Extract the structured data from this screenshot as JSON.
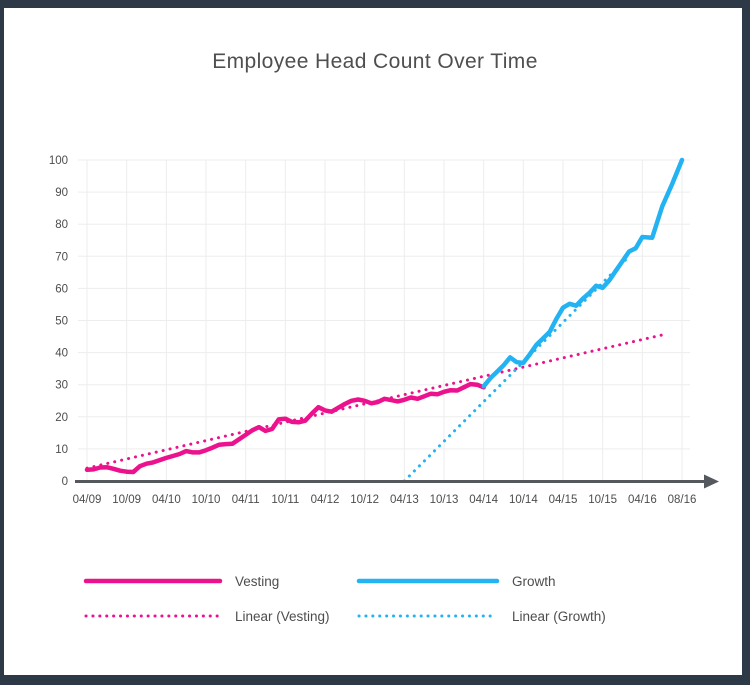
{
  "frame": {
    "border_color": "#2e3947",
    "page_bg": "#ffffff"
  },
  "legend": {
    "items": [
      {
        "label": "Vesting",
        "style": "solid",
        "color": "#ec118d"
      },
      {
        "label": "Growth",
        "style": "solid",
        "color": "#23b2f2"
      },
      {
        "label": "Linear (Vesting)",
        "style": "dotted",
        "color": "#ec118d"
      },
      {
        "label": "Linear (Growth)",
        "style": "dotted",
        "color": "#23b2f2"
      }
    ]
  },
  "chart_data": {
    "type": "line",
    "title": "Employee Head Count Over Time",
    "x_unit": "month index from 04/2009",
    "grid": true,
    "legend_position": "bottom",
    "ylim": [
      0,
      100
    ],
    "y_ticks": [
      0,
      10,
      20,
      30,
      40,
      50,
      60,
      70,
      80,
      90,
      100
    ],
    "x_ticks": [
      {
        "label": "04/09",
        "month": 0
      },
      {
        "label": "10/09",
        "month": 6
      },
      {
        "label": "04/10",
        "month": 12
      },
      {
        "label": "10/10",
        "month": 18
      },
      {
        "label": "04/11",
        "month": 24
      },
      {
        "label": "10/11",
        "month": 30
      },
      {
        "label": "04/12",
        "month": 36
      },
      {
        "label": "10/12",
        "month": 42
      },
      {
        "label": "04/13",
        "month": 48
      },
      {
        "label": "10/13",
        "month": 54
      },
      {
        "label": "04/14",
        "month": 60
      },
      {
        "label": "10/14",
        "month": 66
      },
      {
        "label": "04/15",
        "month": 72
      },
      {
        "label": "10/15",
        "month": 78
      },
      {
        "label": "04/16",
        "month": 84
      },
      {
        "label": "08/16",
        "month": 88
      }
    ],
    "colors": {
      "vesting": "#ec118d",
      "growth": "#23b2f2",
      "axis": "#55585c",
      "grid": "#ededed",
      "text": "#4d4d4d"
    },
    "series": [
      {
        "name": "Vesting",
        "color": "#ec118d",
        "line_style": "solid",
        "start_month": 0,
        "values": [
          3.5,
          3.6,
          4.2,
          4.3,
          3.8,
          3.2,
          2.9,
          2.8,
          4.6,
          5.4,
          5.8,
          6.5,
          7.2,
          7.8,
          8.4,
          9.3,
          8.9,
          8.9,
          9.6,
          10.4,
          11.3,
          11.5,
          11.6,
          13,
          14.4,
          15.8,
          16.8,
          15.6,
          16.2,
          19.2,
          19.4,
          18.4,
          18.3,
          18.8,
          21,
          23,
          22,
          21.6,
          22.8,
          24,
          25,
          25.4,
          25,
          24.2,
          24.6,
          25.6,
          25.2,
          24.8,
          25.3,
          26,
          25.6,
          26.4,
          27.2,
          27,
          27.8,
          28.3,
          28.2,
          29.2,
          30.2,
          30,
          29.2
        ]
      },
      {
        "name": "Growth",
        "color": "#23b2f2",
        "line_style": "solid",
        "start_month": 60,
        "values": [
          29.5,
          32,
          34,
          36,
          38.5,
          37,
          36.8,
          39.5,
          42.5,
          44.5,
          46.5,
          50.5,
          54,
          55.2,
          54.6,
          56.8,
          58.6,
          60.8,
          60.2,
          62.5,
          65.5,
          68.5,
          71.5,
          72.5,
          76,
          75.8,
          85.5,
          92.5,
          100
        ]
      }
    ],
    "trendlines": [
      {
        "name": "Linear (Vesting)",
        "color": "#ec118d",
        "line_style": "dotted",
        "start": {
          "month": 0,
          "value": 4
        },
        "end": {
          "month": 86,
          "value": 45.5
        }
      },
      {
        "name": "Linear (Growth)",
        "color": "#23b2f2",
        "line_style": "dotted",
        "start": {
          "month": 48,
          "value": 0
        },
        "end": {
          "month": 82,
          "value": 70
        }
      }
    ]
  }
}
